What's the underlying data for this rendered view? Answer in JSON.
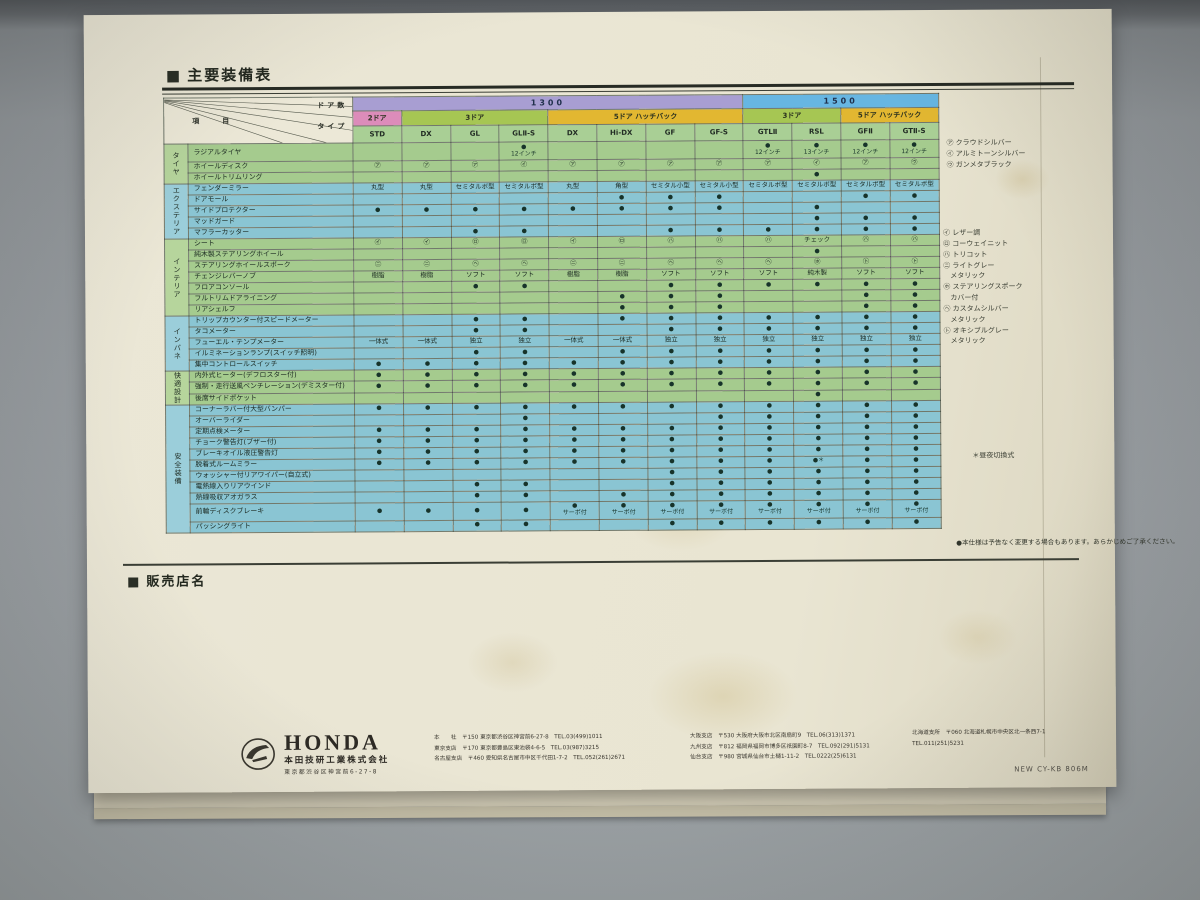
{
  "title": "主要装備表",
  "dealer_title": "販売店名",
  "table": {
    "corner": {
      "item": "項　目",
      "doors": "ドア数",
      "type": "タイプ"
    },
    "groups": [
      {
        "label": "1300",
        "span": 8,
        "color": "#a89ed2"
      },
      {
        "label": "1500",
        "span": 4,
        "color": "#67b6e2"
      }
    ],
    "doors": [
      {
        "label": "2ドア",
        "span": 1,
        "color": "#dc8cba"
      },
      {
        "label": "3ドア",
        "span": 3,
        "color": "#a6c653"
      },
      {
        "label": "5ドア ハッチバック",
        "span": 4,
        "color": "#e2b731"
      },
      {
        "label": "3ドア",
        "span": 2,
        "color": "#a6c653"
      },
      {
        "label": "5ドア ハッチバック",
        "span": 2,
        "color": "#e2b731"
      }
    ],
    "types": [
      "STD",
      "DX",
      "GL",
      "GLⅡ-S",
      "DX",
      "Hi-DX",
      "GF",
      "GF-S",
      "GTLⅡ",
      "RSL",
      "GFⅡ",
      "GTⅡ-S"
    ],
    "tones": {
      "green": {
        "cell": "#a5cb8e",
        "side": "#b6d59c"
      },
      "blue": {
        "cell": "#8ac5d3",
        "side": "#9bceda"
      }
    },
    "sections": [
      {
        "label": "タイヤ",
        "tone": "green",
        "rows": [
          {
            "label": "ラジアルタイヤ",
            "cells": [
              "",
              "",
              "",
              "●\n12インチ",
              "",
              "",
              "",
              "",
              "●\n12インチ",
              "●\n13インチ",
              "●\n12インチ",
              "●\n12インチ"
            ]
          },
          {
            "label": "ホイールディスク",
            "cells": [
              "㋐",
              "㋐",
              "㋐",
              "㋑",
              "㋐",
              "㋐",
              "㋐",
              "㋐",
              "㋐",
              "㋑",
              "㋐",
              "㋒"
            ]
          },
          {
            "label": "ホイールトリムリング",
            "cells": [
              "",
              "",
              "",
              "",
              "",
              "",
              "",
              "",
              "",
              "●",
              "",
              ""
            ]
          }
        ]
      },
      {
        "label": "エクステリア",
        "tone": "blue",
        "rows": [
          {
            "label": "フェンダーミラー",
            "cells": [
              "丸型",
              "丸型",
              "セミタルボ型",
              "セミタルボ型",
              "丸型",
              "角型",
              "セミタル小型",
              "セミタル小型",
              "セミタルボ型",
              "セミタルボ型",
              "セミタルボ型",
              "セミタルボ型"
            ]
          },
          {
            "label": "ドアモール",
            "cells": [
              "",
              "",
              "",
              "",
              "",
              "●",
              "●",
              "●",
              "",
              "",
              "●",
              "●"
            ]
          },
          {
            "label": "サイドプロテクター",
            "cells": [
              "●",
              "●",
              "●",
              "●",
              "●",
              "●",
              "●",
              "●",
              "",
              "●",
              "",
              ""
            ]
          },
          {
            "label": "マッドガード",
            "cells": [
              "",
              "",
              "",
              "",
              "",
              "",
              "",
              "",
              "",
              "●",
              "●",
              "●"
            ]
          },
          {
            "label": "マフラーカッター",
            "cells": [
              "",
              "",
              "●",
              "●",
              "",
              "",
              "●",
              "●",
              "●",
              "●",
              "●",
              "●"
            ]
          }
        ]
      },
      {
        "label": "インテリア",
        "tone": "green",
        "rows": [
          {
            "label": "シート",
            "cells": [
              "㋑",
              "㋑",
              "㋺",
              "㋺",
              "㋑",
              "㋺",
              "㋩",
              "㋩",
              "㋩",
              "チェック",
              "㋩",
              "㋩"
            ]
          },
          {
            "label": "純木製ステアリングホイール",
            "cells": [
              "",
              "",
              "",
              "",
              "",
              "",
              "",
              "",
              "",
              "●",
              "",
              ""
            ]
          },
          {
            "label": "ステアリングホイールスポーク",
            "cells": [
              "㋥",
              "㋥",
              "㋬",
              "㋬",
              "㋥",
              "㋥",
              "㋬",
              "㋬",
              "㋬",
              "㋭",
              "㋣",
              "㋣"
            ]
          },
          {
            "label": "チェンジレバーノブ",
            "cells": [
              "樹脂",
              "樹脂",
              "ソフト",
              "ソフト",
              "樹脂",
              "樹脂",
              "ソフト",
              "ソフト",
              "ソフト",
              "純木製",
              "ソフト",
              "ソフト"
            ]
          },
          {
            "label": "フロアコンソール",
            "cells": [
              "",
              "",
              "●",
              "●",
              "",
              "",
              "●",
              "●",
              "●",
              "●",
              "●",
              "●"
            ]
          },
          {
            "label": "フルトリムドアライニング",
            "cells": [
              "",
              "",
              "",
              "",
              "",
              "●",
              "●",
              "●",
              "",
              "",
              "●",
              "●"
            ]
          },
          {
            "label": "リアシェルフ",
            "cells": [
              "",
              "",
              "",
              "",
              "",
              "●",
              "●",
              "●",
              "",
              "",
              "●",
              "●"
            ]
          }
        ]
      },
      {
        "label": "インパネ",
        "tone": "blue",
        "rows": [
          {
            "label": "トリップカウンター付スピードメーター",
            "cells": [
              "",
              "",
              "●",
              "●",
              "",
              "●",
              "●",
              "●",
              "●",
              "●",
              "●",
              "●"
            ]
          },
          {
            "label": "タコメーター",
            "cells": [
              "",
              "",
              "●",
              "●",
              "",
              "",
              "●",
              "●",
              "●",
              "●",
              "●",
              "●"
            ]
          },
          {
            "label": "フューエル・テンプメーター",
            "cells": [
              "一体式",
              "一体式",
              "独立",
              "独立",
              "一体式",
              "一体式",
              "独立",
              "独立",
              "独立",
              "独立",
              "独立",
              "独立"
            ]
          },
          {
            "label": "イルミネーションランプ(スイッチ照明)",
            "cells": [
              "",
              "",
              "●",
              "●",
              "",
              "●",
              "●",
              "●",
              "●",
              "●",
              "●",
              "●"
            ]
          },
          {
            "label": "集中コントロールスイッチ",
            "cells": [
              "●",
              "●",
              "●",
              "●",
              "●",
              "●",
              "●",
              "●",
              "●",
              "●",
              "●",
              "●"
            ]
          }
        ]
      },
      {
        "label": "快適設計",
        "tone": "green",
        "rows": [
          {
            "label": "内外式ヒーター(デフロスター付)",
            "cells": [
              "●",
              "●",
              "●",
              "●",
              "●",
              "●",
              "●",
              "●",
              "●",
              "●",
              "●",
              "●"
            ]
          },
          {
            "label": "強制・走行送風ベンチレーション(デミスター付)",
            "cells": [
              "●",
              "●",
              "●",
              "●",
              "●",
              "●",
              "●",
              "●",
              "●",
              "●",
              "●",
              "●"
            ]
          },
          {
            "label": "後席サイドポケット",
            "cells": [
              "",
              "",
              "",
              "",
              "",
              "",
              "",
              "",
              "",
              "●",
              "",
              ""
            ]
          }
        ]
      },
      {
        "label": "安全装備",
        "tone": "blue",
        "rows": [
          {
            "label": "コーナーラバー付大型バンパー",
            "cells": [
              "●",
              "●",
              "●",
              "●",
              "●",
              "●",
              "●",
              "●",
              "●",
              "●",
              "●",
              "●"
            ]
          },
          {
            "label": "オーバーライダー",
            "cells": [
              "",
              "",
              "",
              "●",
              "",
              "",
              "",
              "●",
              "●",
              "●",
              "●",
              "●"
            ]
          },
          {
            "label": "定期点検メーター",
            "cells": [
              "●",
              "●",
              "●",
              "●",
              "●",
              "●",
              "●",
              "●",
              "●",
              "●",
              "●",
              "●"
            ]
          },
          {
            "label": "チョーク警告灯(ブザー付)",
            "cells": [
              "●",
              "●",
              "●",
              "●",
              "●",
              "●",
              "●",
              "●",
              "●",
              "●",
              "●",
              "●"
            ]
          },
          {
            "label": "ブレーキオイル液圧警告灯",
            "cells": [
              "●",
              "●",
              "●",
              "●",
              "●",
              "●",
              "●",
              "●",
              "●",
              "●",
              "●",
              "●"
            ]
          },
          {
            "label": "脱着式ルームミラー",
            "cells": [
              "●",
              "●",
              "●",
              "●",
              "●",
              "●",
              "●",
              "●",
              "●",
              "●＊",
              "●",
              "●"
            ]
          },
          {
            "label": "ウォッシャー付リアワイパー(自立式)",
            "cells": [
              "",
              "",
              "",
              "",
              "",
              "",
              "●",
              "●",
              "●",
              "●",
              "●",
              "●"
            ]
          },
          {
            "label": "電熱線入りリアウインド",
            "cells": [
              "",
              "",
              "●",
              "●",
              "",
              "",
              "●",
              "●",
              "●",
              "●",
              "●",
              "●"
            ]
          },
          {
            "label": "熱線吸収アオガラス",
            "cells": [
              "",
              "",
              "●",
              "●",
              "",
              "●",
              "●",
              "●",
              "●",
              "●",
              "●",
              "●"
            ]
          },
          {
            "label": "前輪ディスクブレーキ",
            "cells": [
              "●",
              "●",
              "●",
              "●",
              "●\nサーボ付",
              "●\nサーボ付",
              "●\nサーボ付",
              "●\nサーボ付",
              "●\nサーボ付",
              "●\nサーボ付",
              "●\nサーボ付",
              "●\nサーボ付"
            ]
          },
          {
            "label": "パッシングライト",
            "cells": [
              "",
              "",
              "●",
              "●",
              "",
              "",
              "●",
              "●",
              "●",
              "●",
              "●",
              "●"
            ]
          }
        ]
      }
    ]
  },
  "notes": {
    "wheel": [
      "㋐ クラウドシルバー",
      "㋑ アルミトーンシルバー",
      "㋒ ガンメタブラック"
    ],
    "interior": [
      "㋑ レザー調",
      "㋺ コーウェイニット",
      "㋩ トリコット",
      "㋥ ライトグレー\n　メタリック",
      "㋭ ステアリングスポーク\n　カバー付",
      "㋬ カスタムシルバー\n　メタリック",
      "㋣ オキシブルグレー\n　メタリック"
    ],
    "mirror": "＊昼夜切換式",
    "disclaimer": "●本仕様は予告なく変更する場合もあります。あらかじめご了承ください。"
  },
  "footer": {
    "brand": "HONDA",
    "company": "本田技研工業株式会社",
    "company_addr": "東京都渋谷区神宮前6-27-8",
    "offices1": "本　　社　〒150 東京都渋谷区神宮前6-27-8　TEL.03(499)1011\n東京支店　〒170 東京都豊島区東池袋4-6-5　TEL.03(987)3215\n名古屋支店　〒460 愛知県名古屋市中区千代田1-7-2　TEL.052(261)2671",
    "offices2": "大阪支店　〒530 大阪府大阪市北区南扇町9　TEL.06(313)1371\n九州支店　〒812 福岡県福岡市博多区祇園町8-7　TEL.092(291)5131\n仙台支店　〒980 宮城県仙台市土樋1-11-2　TEL.0222(25)6131",
    "offices3": "北海道支所　〒060 北海道札幌市中央区北一条西7-1\nTEL.011(251)5231",
    "code": "NEW CY-KB 806M"
  },
  "icons": {
    "heading_square": "■"
  }
}
